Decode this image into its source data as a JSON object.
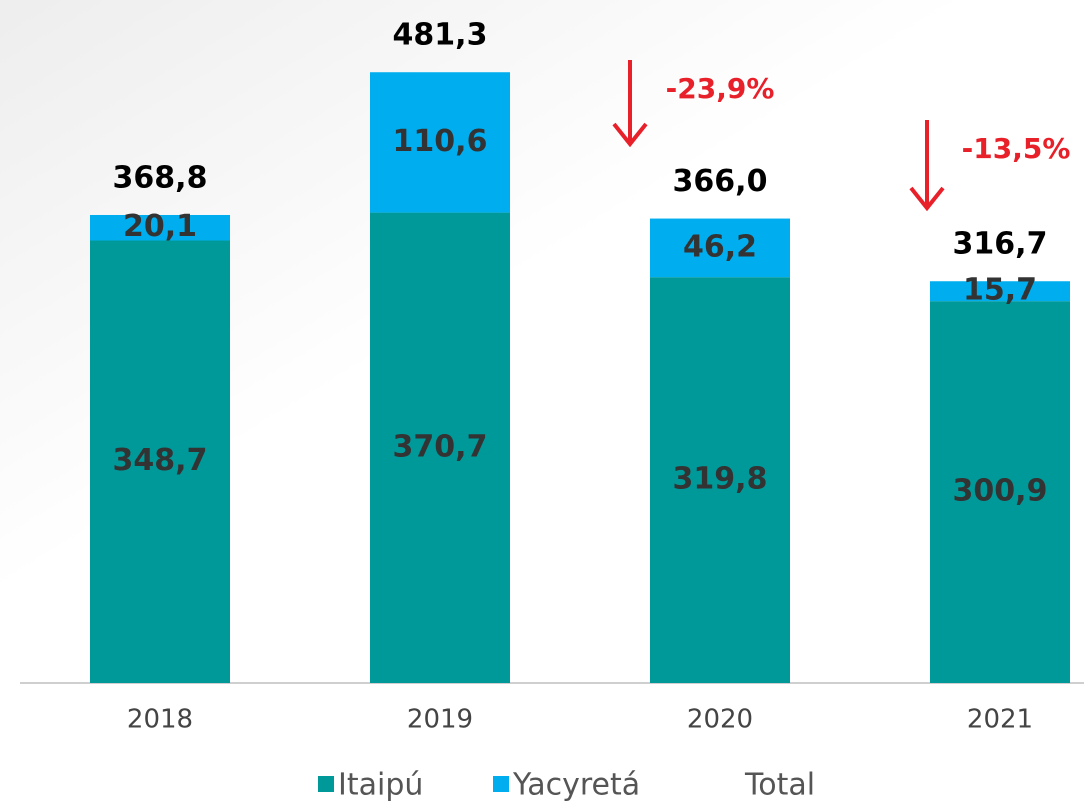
{
  "chart_data": {
    "type": "stacked_bar",
    "categories": [
      "2018",
      "2019",
      "2020",
      "2021"
    ],
    "series": [
      {
        "name": "Itaipú",
        "color": "#00999a",
        "values": [
          348.7,
          370.7,
          319.8,
          300.9
        ],
        "value_labels": [
          "348,7",
          "370,7",
          "319,8",
          "300,9"
        ]
      },
      {
        "name": "Yacyretá",
        "color": "#00aeef",
        "values": [
          20.1,
          110.6,
          46.2,
          15.7
        ],
        "value_labels": [
          "20,1",
          "110,6",
          "46,2",
          "15,7"
        ]
      },
      {
        "name": "Total",
        "values": [
          368.8,
          481.3,
          366.0,
          316.7
        ],
        "value_labels": [
          "368,8",
          "481,3",
          "366,0",
          "316,7"
        ]
      }
    ],
    "ylim": [
      0,
      500
    ],
    "annotations": [
      "-23,9%",
      "-13,5%"
    ],
    "legend": "bottom"
  }
}
